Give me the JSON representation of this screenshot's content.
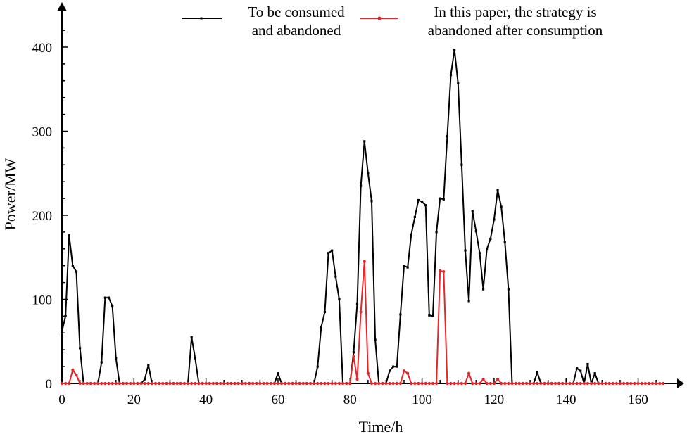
{
  "chart_data": {
    "type": "line",
    "title": "",
    "xlabel": "Time/h",
    "ylabel": "Power/MW",
    "xlim": [
      0,
      170
    ],
    "ylim": [
      0,
      440
    ],
    "x_ticks": [
      "0",
      "20",
      "40",
      "60",
      "80",
      "100",
      "120",
      "140",
      "160"
    ],
    "y_ticks": [
      "0",
      "100",
      "200",
      "300",
      "400"
    ],
    "grid": false,
    "legend_position": "top",
    "series": [
      {
        "name_lines": [
          "To be consumed",
          "and abandoned"
        ],
        "color": "#000000",
        "marker": "square",
        "points": [
          [
            0,
            62
          ],
          [
            1,
            80
          ],
          [
            2,
            176
          ],
          [
            3,
            140
          ],
          [
            4,
            133
          ],
          [
            5,
            42
          ],
          [
            6,
            0
          ],
          [
            7,
            0
          ],
          [
            8,
            0
          ],
          [
            9,
            0
          ],
          [
            10,
            0
          ],
          [
            11,
            25
          ],
          [
            12,
            102
          ],
          [
            13,
            102
          ],
          [
            14,
            92
          ],
          [
            15,
            30
          ],
          [
            16,
            0
          ],
          [
            17,
            0
          ],
          [
            18,
            0
          ],
          [
            19,
            0
          ],
          [
            20,
            0
          ],
          [
            21,
            0
          ],
          [
            22,
            0
          ],
          [
            23,
            5
          ],
          [
            24,
            22
          ],
          [
            25,
            0
          ],
          [
            26,
            0
          ],
          [
            27,
            0
          ],
          [
            28,
            0
          ],
          [
            29,
            0
          ],
          [
            30,
            0
          ],
          [
            31,
            0
          ],
          [
            32,
            0
          ],
          [
            33,
            0
          ],
          [
            34,
            0
          ],
          [
            35,
            0
          ],
          [
            36,
            55
          ],
          [
            37,
            30
          ],
          [
            38,
            0
          ],
          [
            39,
            0
          ],
          [
            40,
            0
          ],
          [
            41,
            0
          ],
          [
            42,
            0
          ],
          [
            43,
            0
          ],
          [
            44,
            0
          ],
          [
            45,
            0
          ],
          [
            46,
            0
          ],
          [
            47,
            0
          ],
          [
            48,
            0
          ],
          [
            49,
            0
          ],
          [
            50,
            0
          ],
          [
            51,
            0
          ],
          [
            52,
            0
          ],
          [
            53,
            0
          ],
          [
            54,
            0
          ],
          [
            55,
            0
          ],
          [
            56,
            0
          ],
          [
            57,
            0
          ],
          [
            58,
            0
          ],
          [
            59,
            0
          ],
          [
            60,
            12
          ],
          [
            61,
            0
          ],
          [
            62,
            0
          ],
          [
            63,
            0
          ],
          [
            64,
            0
          ],
          [
            65,
            0
          ],
          [
            66,
            0
          ],
          [
            67,
            0
          ],
          [
            68,
            0
          ],
          [
            69,
            0
          ],
          [
            70,
            0
          ],
          [
            71,
            20
          ],
          [
            72,
            67
          ],
          [
            73,
            85
          ],
          [
            74,
            155
          ],
          [
            75,
            158
          ],
          [
            76,
            127
          ],
          [
            77,
            100
          ],
          [
            78,
            0
          ],
          [
            79,
            0
          ],
          [
            80,
            0
          ],
          [
            81,
            37
          ],
          [
            82,
            95
          ],
          [
            83,
            235
          ],
          [
            84,
            288
          ],
          [
            85,
            250
          ],
          [
            86,
            217
          ],
          [
            87,
            52
          ],
          [
            88,
            0
          ],
          [
            89,
            0
          ],
          [
            90,
            0
          ],
          [
            91,
            15
          ],
          [
            92,
            20
          ],
          [
            93,
            20
          ],
          [
            94,
            82
          ],
          [
            95,
            140
          ],
          [
            96,
            138
          ],
          [
            97,
            177
          ],
          [
            98,
            198
          ],
          [
            99,
            218
          ],
          [
            100,
            216
          ],
          [
            101,
            212
          ],
          [
            102,
            81
          ],
          [
            103,
            80
          ],
          [
            104,
            180
          ],
          [
            105,
            220
          ],
          [
            106,
            219
          ],
          [
            107,
            294
          ],
          [
            108,
            367
          ],
          [
            109,
            397
          ],
          [
            110,
            357
          ],
          [
            111,
            260
          ],
          [
            112,
            158
          ],
          [
            113,
            98
          ],
          [
            114,
            205
          ],
          [
            115,
            181
          ],
          [
            116,
            155
          ],
          [
            117,
            112
          ],
          [
            118,
            160
          ],
          [
            119,
            172
          ],
          [
            120,
            195
          ],
          [
            121,
            230
          ],
          [
            122,
            210
          ],
          [
            123,
            168
          ],
          [
            124,
            112
          ],
          [
            125,
            0
          ],
          [
            126,
            0
          ],
          [
            127,
            0
          ],
          [
            128,
            0
          ],
          [
            129,
            0
          ],
          [
            130,
            0
          ],
          [
            131,
            0
          ],
          [
            132,
            13
          ],
          [
            133,
            0
          ],
          [
            134,
            0
          ],
          [
            135,
            0
          ],
          [
            136,
            0
          ],
          [
            137,
            0
          ],
          [
            138,
            0
          ],
          [
            139,
            0
          ],
          [
            140,
            0
          ],
          [
            141,
            0
          ],
          [
            142,
            0
          ],
          [
            143,
            18
          ],
          [
            144,
            15
          ],
          [
            145,
            0
          ],
          [
            146,
            23
          ],
          [
            147,
            0
          ],
          [
            148,
            12
          ],
          [
            149,
            0
          ]
        ]
      },
      {
        "name_lines": [
          "In this paper, the strategy is",
          "abandoned after consumption"
        ],
        "color": "#e8262a",
        "marker": "circle",
        "points": [
          [
            0,
            0
          ],
          [
            1,
            0
          ],
          [
            2,
            0
          ],
          [
            3,
            16
          ],
          [
            4,
            10
          ],
          [
            5,
            0
          ],
          [
            6,
            0
          ],
          [
            7,
            0
          ],
          [
            8,
            0
          ],
          [
            9,
            0
          ],
          [
            10,
            0
          ],
          [
            11,
            0
          ],
          [
            12,
            0
          ],
          [
            13,
            0
          ],
          [
            14,
            0
          ],
          [
            15,
            0
          ],
          [
            16,
            0
          ],
          [
            17,
            0
          ],
          [
            18,
            0
          ],
          [
            19,
            0
          ],
          [
            20,
            0
          ],
          [
            21,
            0
          ],
          [
            22,
            0
          ],
          [
            23,
            0
          ],
          [
            24,
            0
          ],
          [
            25,
            0
          ],
          [
            26,
            0
          ],
          [
            27,
            0
          ],
          [
            28,
            0
          ],
          [
            29,
            0
          ],
          [
            30,
            0
          ],
          [
            31,
            0
          ],
          [
            32,
            0
          ],
          [
            33,
            0
          ],
          [
            34,
            0
          ],
          [
            35,
            0
          ],
          [
            36,
            0
          ],
          [
            37,
            0
          ],
          [
            38,
            0
          ],
          [
            39,
            0
          ],
          [
            40,
            0
          ],
          [
            41,
            0
          ],
          [
            42,
            0
          ],
          [
            43,
            0
          ],
          [
            44,
            0
          ],
          [
            45,
            0
          ],
          [
            46,
            0
          ],
          [
            47,
            0
          ],
          [
            48,
            0
          ],
          [
            49,
            0
          ],
          [
            50,
            0
          ],
          [
            51,
            0
          ],
          [
            52,
            0
          ],
          [
            53,
            0
          ],
          [
            54,
            0
          ],
          [
            55,
            0
          ],
          [
            56,
            0
          ],
          [
            57,
            0
          ],
          [
            58,
            0
          ],
          [
            59,
            0
          ],
          [
            60,
            0
          ],
          [
            61,
            0
          ],
          [
            62,
            0
          ],
          [
            63,
            0
          ],
          [
            64,
            0
          ],
          [
            65,
            0
          ],
          [
            66,
            0
          ],
          [
            67,
            0
          ],
          [
            68,
            0
          ],
          [
            69,
            0
          ],
          [
            70,
            0
          ],
          [
            71,
            0
          ],
          [
            72,
            0
          ],
          [
            73,
            0
          ],
          [
            74,
            0
          ],
          [
            75,
            0
          ],
          [
            76,
            0
          ],
          [
            77,
            0
          ],
          [
            78,
            0
          ],
          [
            79,
            0
          ],
          [
            80,
            0
          ],
          [
            81,
            32
          ],
          [
            82,
            5
          ],
          [
            83,
            85
          ],
          [
            84,
            145
          ],
          [
            85,
            12
          ],
          [
            86,
            0
          ],
          [
            87,
            0
          ],
          [
            88,
            0
          ],
          [
            89,
            0
          ],
          [
            90,
            0
          ],
          [
            91,
            0
          ],
          [
            92,
            0
          ],
          [
            93,
            0
          ],
          [
            94,
            0
          ],
          [
            95,
            15
          ],
          [
            96,
            12
          ],
          [
            97,
            0
          ],
          [
            98,
            0
          ],
          [
            99,
            0
          ],
          [
            100,
            0
          ],
          [
            101,
            0
          ],
          [
            102,
            0
          ],
          [
            103,
            0
          ],
          [
            104,
            0
          ],
          [
            105,
            134
          ],
          [
            106,
            133
          ],
          [
            107,
            0
          ],
          [
            108,
            0
          ],
          [
            109,
            0
          ],
          [
            110,
            0
          ],
          [
            111,
            0
          ],
          [
            112,
            0
          ],
          [
            113,
            12
          ],
          [
            114,
            0
          ],
          [
            115,
            0
          ],
          [
            116,
            0
          ],
          [
            117,
            5
          ],
          [
            118,
            0
          ],
          [
            119,
            0
          ],
          [
            120,
            0
          ],
          [
            121,
            5
          ],
          [
            122,
            0
          ],
          [
            123,
            0
          ],
          [
            124,
            0
          ],
          [
            125,
            0
          ],
          [
            126,
            0
          ],
          [
            127,
            0
          ],
          [
            128,
            0
          ],
          [
            129,
            0
          ],
          [
            130,
            0
          ],
          [
            131,
            0
          ],
          [
            132,
            0
          ],
          [
            133,
            0
          ],
          [
            134,
            0
          ],
          [
            135,
            0
          ],
          [
            136,
            0
          ],
          [
            137,
            0
          ],
          [
            138,
            0
          ],
          [
            139,
            0
          ],
          [
            140,
            0
          ],
          [
            141,
            0
          ],
          [
            142,
            0
          ],
          [
            143,
            0
          ],
          [
            144,
            0
          ],
          [
            145,
            0
          ],
          [
            146,
            0
          ],
          [
            147,
            0
          ],
          [
            148,
            0
          ],
          [
            149,
            0
          ],
          [
            150,
            0
          ],
          [
            151,
            0
          ],
          [
            152,
            0
          ],
          [
            153,
            0
          ],
          [
            154,
            0
          ],
          [
            155,
            0
          ],
          [
            156,
            0
          ],
          [
            157,
            0
          ],
          [
            158,
            0
          ],
          [
            159,
            0
          ],
          [
            160,
            0
          ],
          [
            161,
            0
          ],
          [
            162,
            0
          ],
          [
            163,
            0
          ],
          [
            164,
            0
          ],
          [
            165,
            0
          ],
          [
            166,
            0
          ],
          [
            167,
            0
          ]
        ]
      }
    ]
  }
}
